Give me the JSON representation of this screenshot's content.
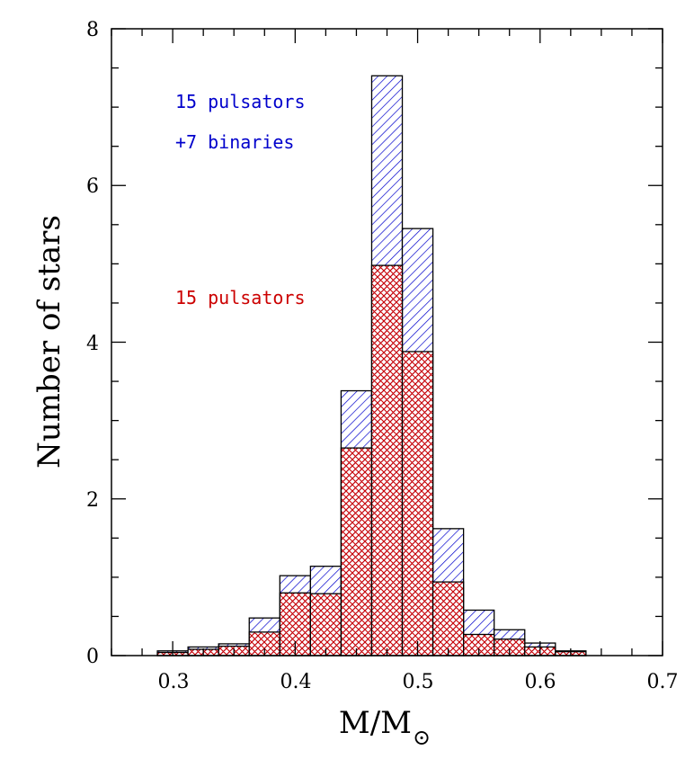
{
  "chart_data": {
    "type": "bar",
    "title": "",
    "xlabel": "M/M",
    "xlabel_subscript": "⊙",
    "ylabel": "Number of stars",
    "xlim": [
      0.25,
      0.7
    ],
    "ylim": [
      0,
      8
    ],
    "x_ticks": [
      "0.3",
      "0.4",
      "0.5",
      "0.6",
      "0.7"
    ],
    "y_ticks": [
      "0",
      "2",
      "4",
      "6",
      "8"
    ],
    "bin_edges": [
      0.2875,
      0.3125,
      0.3375,
      0.3625,
      0.3875,
      0.4125,
      0.4375,
      0.4625,
      0.4875,
      0.5125,
      0.5375,
      0.5625,
      0.5875,
      0.6125,
      0.6375
    ],
    "bin_width": 0.025,
    "series": [
      {
        "name": "15 pulsators +7 binaries",
        "color": "#0000cc",
        "hatch": "diagonal",
        "x": [
          0.3,
          0.325,
          0.35,
          0.375,
          0.4,
          0.425,
          0.45,
          0.475,
          0.5,
          0.525,
          0.55,
          0.575,
          0.6,
          0.625
        ],
        "values": [
          0.06,
          0.11,
          0.15,
          0.48,
          1.02,
          1.14,
          3.38,
          7.4,
          5.45,
          1.62,
          0.58,
          0.33,
          0.16,
          0.06
        ]
      },
      {
        "name": "15 pulsators",
        "color": "#cc0000",
        "hatch": "crosshatch",
        "x": [
          0.3,
          0.325,
          0.35,
          0.375,
          0.4,
          0.425,
          0.45,
          0.475,
          0.5,
          0.525,
          0.55,
          0.575,
          0.6,
          0.625
        ],
        "values": [
          0.04,
          0.08,
          0.12,
          0.3,
          0.8,
          0.79,
          2.65,
          4.98,
          3.88,
          0.94,
          0.27,
          0.21,
          0.11,
          0.05
        ]
      }
    ],
    "annotations": [
      {
        "text": "15 pulsators",
        "color": "#0000cc"
      },
      {
        "text": "+7 binaries",
        "color": "#0000cc"
      },
      {
        "text": "15 pulsators",
        "color": "#cc0000"
      }
    ]
  }
}
